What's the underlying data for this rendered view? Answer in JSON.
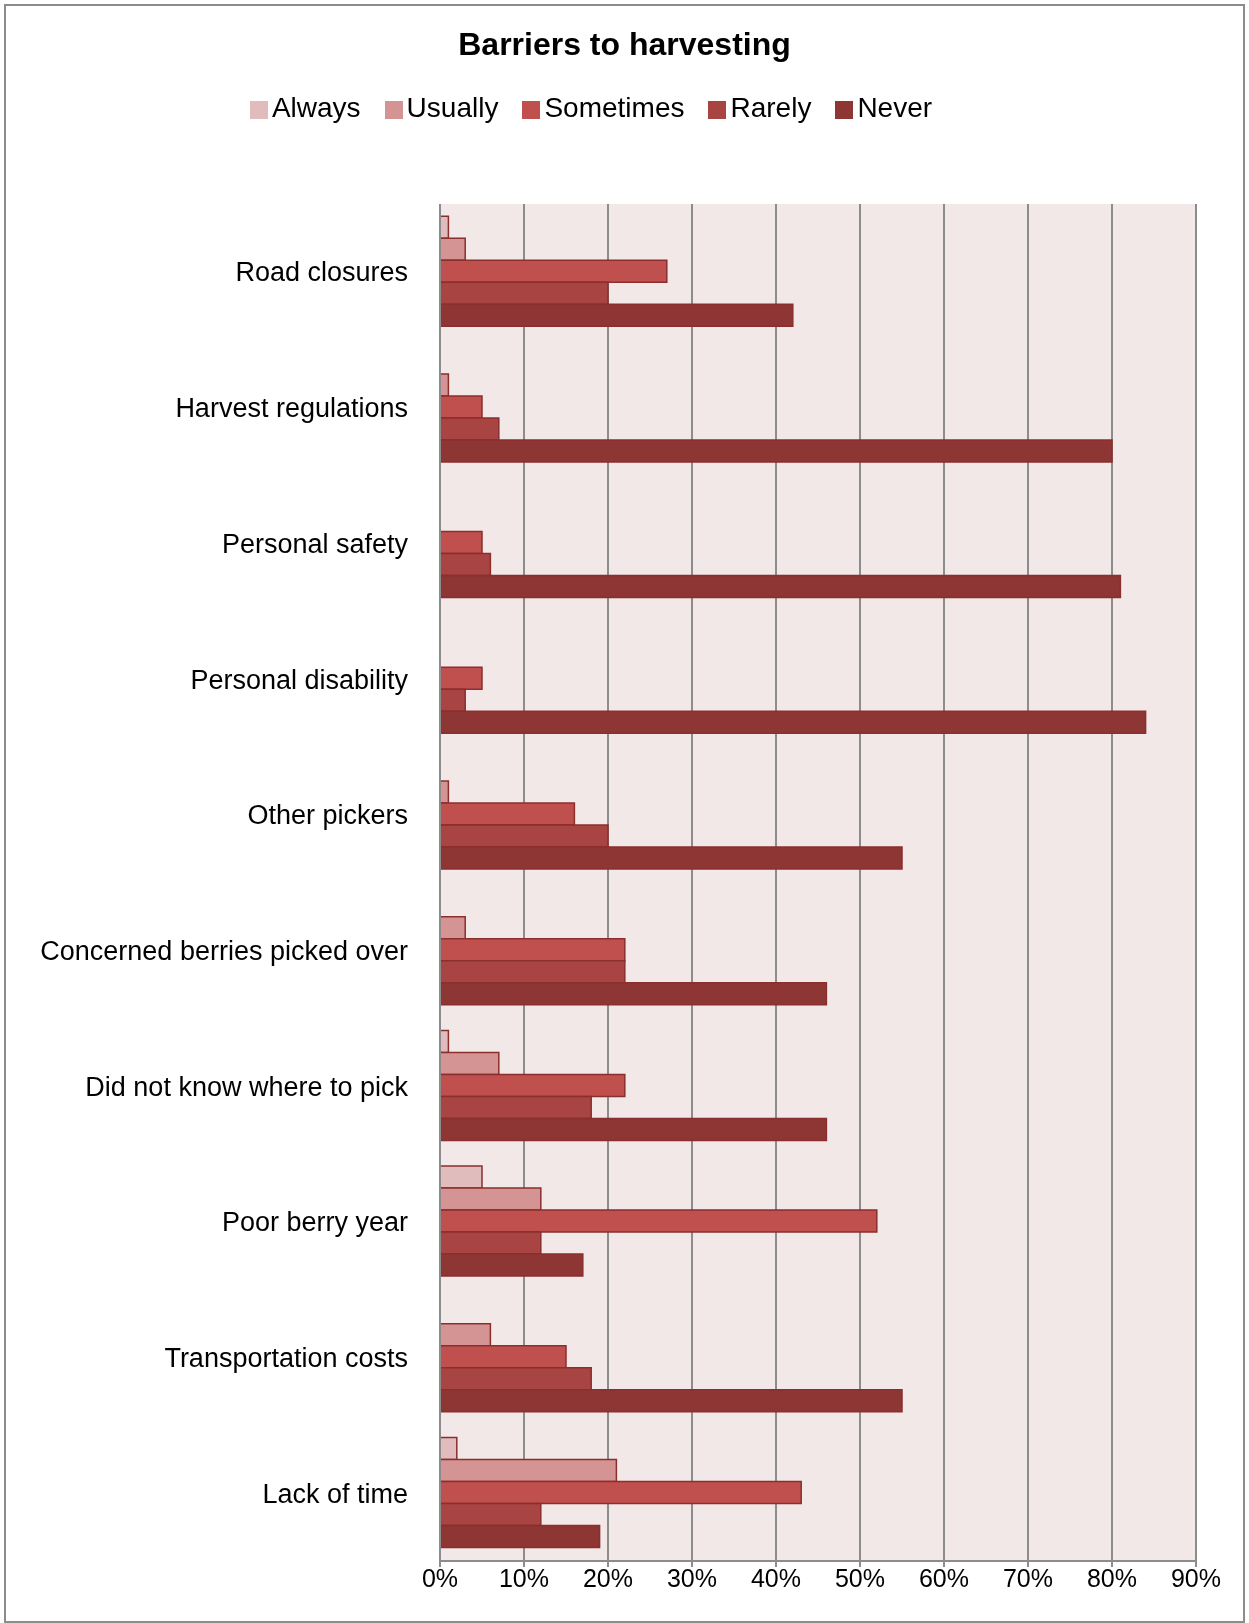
{
  "chart_data": {
    "type": "bar",
    "orientation": "horizontal",
    "title": "Barriers to harvesting",
    "categories": [
      "Road closures",
      "Harvest regulations",
      "Personal safety",
      "Personal disability",
      "Other pickers",
      "Concerned berries picked over",
      "Did not know where to pick",
      "Poor berry year",
      "Transportation costs",
      "Lack of time"
    ],
    "series": [
      {
        "name": "Always",
        "color": "#e0bcbd",
        "values": [
          1,
          0,
          0,
          0,
          0,
          0,
          1,
          5,
          0,
          2
        ]
      },
      {
        "name": "Usually",
        "color": "#d49494",
        "values": [
          3,
          1,
          0,
          0,
          1,
          3,
          7,
          12,
          6,
          21
        ]
      },
      {
        "name": "Sometimes",
        "color": "#c0504d",
        "values": [
          27,
          5,
          5,
          5,
          16,
          22,
          22,
          52,
          15,
          43
        ]
      },
      {
        "name": "Rarely",
        "color": "#a84543",
        "values": [
          20,
          7,
          6,
          3,
          20,
          22,
          18,
          12,
          18,
          12
        ]
      },
      {
        "name": "Never",
        "color": "#8d3634",
        "values": [
          42,
          80,
          81,
          84,
          55,
          46,
          46,
          17,
          55,
          19
        ]
      }
    ],
    "xlim": [
      0,
      90
    ],
    "xticks": [
      {
        "value": 0,
        "label": "0%"
      },
      {
        "value": 10,
        "label": "10%"
      },
      {
        "value": 20,
        "label": "20%"
      },
      {
        "value": 30,
        "label": "30%"
      },
      {
        "value": 40,
        "label": "40%"
      },
      {
        "value": 50,
        "label": "50%"
      },
      {
        "value": 60,
        "label": "60%"
      },
      {
        "value": 70,
        "label": "70%"
      },
      {
        "value": 80,
        "label": "80%"
      },
      {
        "value": 90,
        "label": "90%"
      }
    ],
    "grid": "x",
    "legend": "top"
  }
}
